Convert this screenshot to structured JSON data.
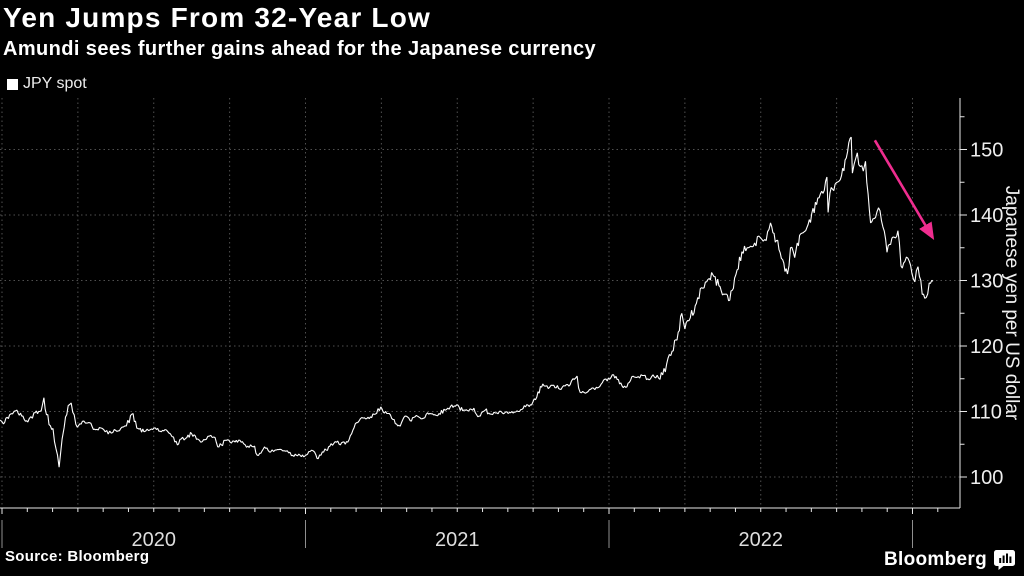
{
  "header": {
    "title": "Yen Jumps From 32-Year Low",
    "subtitle": "Amundi sees further gains ahead for the Japanese currency"
  },
  "legend": {
    "label": "JPY spot",
    "marker_color": "#ffffff"
  },
  "footer": {
    "source": "Source: Bloomberg",
    "brand": "Bloomberg"
  },
  "chart_data": {
    "type": "line",
    "title": "Yen Jumps From 32-Year Low",
    "series_name": "JPY spot",
    "ylabel": "Japanese yen per US dollar",
    "xlabel": "",
    "x_unit": "years (fraction since Jan 1 2020)",
    "x_year_labels": [
      "2020",
      "2021",
      "2022"
    ],
    "year_boundaries_t": [
      0,
      1,
      2,
      3
    ],
    "x_range_t": [
      -0.006,
      3.155
    ],
    "y_ticks": [
      100,
      110,
      120,
      130,
      140,
      150
    ],
    "y_minor_ticks": [
      105,
      115,
      125,
      135,
      145,
      155
    ],
    "ylim": [
      95.2,
      157.9
    ],
    "grid": "dotted",
    "legend_position": "top-left",
    "line_color": "#ffffff",
    "background_color": "#000000",
    "grid_color": "#505050",
    "axis_color": "#e8e8e8",
    "tick_label_color": "#efefef",
    "annotation_arrow": {
      "meaning": "yen strengthening from 32-year low",
      "from_t": 2.876,
      "from_value": 151.4,
      "to_t": 3.066,
      "to_value": 136.6,
      "color": "#ef2d8f"
    },
    "points": [
      [
        -0.006,
        108.7
      ],
      [
        0.005,
        108.1
      ],
      [
        0.025,
        109.5
      ],
      [
        0.045,
        110.1
      ],
      [
        0.065,
        109.3
      ],
      [
        0.085,
        108.4
      ],
      [
        0.105,
        109.8
      ],
      [
        0.125,
        110.0
      ],
      [
        0.138,
        112.1
      ],
      [
        0.155,
        108.0
      ],
      [
        0.168,
        107.4
      ],
      [
        0.178,
        104.3
      ],
      [
        0.188,
        101.5
      ],
      [
        0.198,
        105.8
      ],
      [
        0.205,
        107.6
      ],
      [
        0.218,
        110.9
      ],
      [
        0.228,
        111.3
      ],
      [
        0.238,
        109.5
      ],
      [
        0.248,
        107.6
      ],
      [
        0.265,
        108.5
      ],
      [
        0.285,
        108.3
      ],
      [
        0.305,
        107.3
      ],
      [
        0.325,
        107.5
      ],
      [
        0.34,
        106.9
      ],
      [
        0.36,
        106.7
      ],
      [
        0.375,
        107.1
      ],
      [
        0.395,
        107.6
      ],
      [
        0.41,
        107.8
      ],
      [
        0.428,
        109.6
      ],
      [
        0.448,
        107.4
      ],
      [
        0.468,
        106.9
      ],
      [
        0.488,
        107.2
      ],
      [
        0.505,
        107.5
      ],
      [
        0.525,
        106.9
      ],
      [
        0.545,
        107.0
      ],
      [
        0.565,
        106.1
      ],
      [
        0.578,
        104.9
      ],
      [
        0.59,
        105.8
      ],
      [
        0.605,
        105.9
      ],
      [
        0.625,
        106.6
      ],
      [
        0.645,
        105.8
      ],
      [
        0.66,
        105.4
      ],
      [
        0.678,
        106.2
      ],
      [
        0.698,
        106.1
      ],
      [
        0.715,
        104.6
      ],
      [
        0.735,
        105.6
      ],
      [
        0.752,
        105.3
      ],
      [
        0.772,
        105.6
      ],
      [
        0.792,
        105.4
      ],
      [
        0.81,
        104.7
      ],
      [
        0.828,
        104.6
      ],
      [
        0.845,
        103.3
      ],
      [
        0.865,
        104.6
      ],
      [
        0.885,
        103.8
      ],
      [
        0.9,
        104.1
      ],
      [
        0.92,
        104.2
      ],
      [
        0.94,
        104.0
      ],
      [
        0.958,
        103.3
      ],
      [
        0.978,
        103.5
      ],
      [
        0.998,
        103.2
      ],
      [
        1.015,
        103.9
      ],
      [
        1.03,
        103.8
      ],
      [
        1.042,
        102.8
      ],
      [
        1.06,
        103.8
      ],
      [
        1.08,
        104.7
      ],
      [
        1.098,
        105.4
      ],
      [
        1.115,
        104.9
      ],
      [
        1.135,
        105.4
      ],
      [
        1.152,
        106.6
      ],
      [
        1.172,
        108.3
      ],
      [
        1.19,
        109.0
      ],
      [
        1.21,
        108.9
      ],
      [
        1.23,
        109.6
      ],
      [
        1.248,
        110.7
      ],
      [
        1.268,
        109.7
      ],
      [
        1.288,
        108.8
      ],
      [
        1.308,
        107.9
      ],
      [
        1.328,
        109.3
      ],
      [
        1.345,
        108.6
      ],
      [
        1.365,
        109.4
      ],
      [
        1.385,
        108.9
      ],
      [
        1.402,
        109.8
      ],
      [
        1.422,
        109.5
      ],
      [
        1.44,
        109.7
      ],
      [
        1.46,
        110.2
      ],
      [
        1.478,
        110.8
      ],
      [
        1.498,
        111.0
      ],
      [
        1.518,
        110.1
      ],
      [
        1.538,
        110.1
      ],
      [
        1.555,
        110.5
      ],
      [
        1.572,
        109.3
      ],
      [
        1.592,
        110.2
      ],
      [
        1.612,
        109.6
      ],
      [
        1.63,
        109.8
      ],
      [
        1.648,
        109.8
      ],
      [
        1.668,
        109.7
      ],
      [
        1.688,
        109.9
      ],
      [
        1.705,
        110.0
      ],
      [
        1.725,
        110.7
      ],
      [
        1.745,
        111.0
      ],
      [
        1.762,
        112.2
      ],
      [
        1.782,
        114.2
      ],
      [
        1.8,
        113.5
      ],
      [
        1.818,
        114.0
      ],
      [
        1.838,
        113.4
      ],
      [
        1.855,
        113.9
      ],
      [
        1.872,
        114.1
      ],
      [
        1.895,
        115.4
      ],
      [
        1.905,
        112.9
      ],
      [
        1.922,
        112.8
      ],
      [
        1.94,
        113.4
      ],
      [
        1.958,
        113.7
      ],
      [
        1.978,
        114.4
      ],
      [
        1.998,
        115.1
      ],
      [
        2.015,
        115.6
      ],
      [
        2.035,
        114.2
      ],
      [
        2.055,
        113.7
      ],
      [
        2.075,
        115.3
      ],
      [
        2.092,
        115.2
      ],
      [
        2.11,
        115.5
      ],
      [
        2.128,
        115.0
      ],
      [
        2.145,
        115.6
      ],
      [
        2.168,
        114.9
      ],
      [
        2.19,
        117.3
      ],
      [
        2.208,
        119.2
      ],
      [
        2.228,
        122.1
      ],
      [
        2.24,
        125.0
      ],
      [
        2.25,
        122.6
      ],
      [
        2.268,
        124.3
      ],
      [
        2.288,
        126.5
      ],
      [
        2.305,
        128.9
      ],
      [
        2.322,
        129.8
      ],
      [
        2.342,
        130.9
      ],
      [
        2.362,
        129.2
      ],
      [
        2.382,
        127.9
      ],
      [
        2.398,
        127.0
      ],
      [
        2.418,
        130.9
      ],
      [
        2.438,
        134.4
      ],
      [
        2.455,
        135.0
      ],
      [
        2.475,
        135.2
      ],
      [
        2.498,
        136.6
      ],
      [
        2.518,
        136.1
      ],
      [
        2.532,
        138.8
      ],
      [
        2.552,
        136.1
      ],
      [
        2.572,
        133.2
      ],
      [
        2.588,
        131.0
      ],
      [
        2.598,
        135.0
      ],
      [
        2.612,
        133.5
      ],
      [
        2.628,
        136.9
      ],
      [
        2.648,
        137.6
      ],
      [
        2.668,
        140.2
      ],
      [
        2.688,
        142.6
      ],
      [
        2.705,
        143.3
      ],
      [
        2.718,
        145.8
      ],
      [
        2.722,
        140.4
      ],
      [
        2.728,
        143.3
      ],
      [
        2.745,
        144.7
      ],
      [
        2.762,
        145.4
      ],
      [
        2.782,
        148.7
      ],
      [
        2.798,
        151.9
      ],
      [
        2.802,
        146.4
      ],
      [
        2.808,
        147.8
      ],
      [
        2.818,
        149.5
      ],
      [
        2.828,
        147.4
      ],
      [
        2.838,
        146.7
      ],
      [
        2.845,
        148.2
      ],
      [
        2.858,
        140.7
      ],
      [
        2.862,
        138.8
      ],
      [
        2.878,
        139.6
      ],
      [
        2.888,
        141.1
      ],
      [
        2.898,
        139.1
      ],
      [
        2.916,
        134.3
      ],
      [
        2.928,
        135.5
      ],
      [
        2.94,
        136.6
      ],
      [
        2.952,
        137.6
      ],
      [
        2.962,
        132.2
      ],
      [
        2.975,
        132.9
      ],
      [
        2.985,
        133.4
      ],
      [
        2.998,
        131.1
      ],
      [
        3.008,
        129.8
      ],
      [
        3.018,
        132.1
      ],
      [
        3.032,
        127.9
      ],
      [
        3.045,
        127.4
      ],
      [
        3.055,
        129.6
      ],
      [
        3.068,
        129.9
      ]
    ]
  }
}
